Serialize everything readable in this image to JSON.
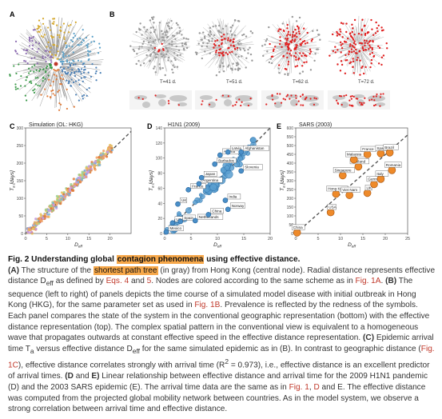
{
  "panel_labels": {
    "a": "A",
    "b": "B",
    "c": "C",
    "d": "D",
    "e": "E"
  },
  "panel_b": {
    "time_labels": [
      "T=41 d.",
      "T=51 d.",
      "T=62 d.",
      "T=72 d."
    ]
  },
  "panel_c": {
    "title": "Simulation (OL: HKG)",
    "ylabel": "T_a [days]",
    "xlabel": "D_eff"
  },
  "panel_d": {
    "title": "H1N1 (2009)",
    "ylabel": "T_a [days]",
    "xlabel": "D_eff",
    "countries": [
      "Afghanistan",
      "Latvia",
      "Algeria",
      "Barbados",
      "Slovenia",
      "Japan",
      "Argentina",
      "France",
      "India",
      "UK",
      "Norway",
      "China",
      "USA",
      "Spain",
      "Netherlands",
      "Mexico"
    ]
  },
  "panel_e": {
    "title": "SARS (2003)",
    "ylabel": "T_a [days]",
    "xlabel": "D_eff",
    "countries": [
      "France",
      "Spain",
      "Brazil",
      "Malaysia",
      "Romania",
      "Thailand",
      "Italy",
      "Singapore",
      "Germany",
      "Hong Kong",
      "Viet Nam",
      "UK",
      "USA",
      "China"
    ]
  },
  "chart_data": [
    {
      "type": "scatter",
      "title": "Simulation (OL: HKG)",
      "xlabel": "D_eff",
      "ylabel": "T_a [days]",
      "xlim": [
        0,
        25
      ],
      "ylim": [
        0,
        300
      ],
      "x_ticks": [
        0,
        5,
        10,
        15,
        20
      ],
      "y_ticks": [
        0,
        50,
        100,
        150,
        200,
        250,
        300
      ],
      "series": [
        {
          "x": [
            1,
            2,
            3,
            4,
            5,
            6,
            7,
            8,
            9,
            10,
            11,
            12,
            13,
            14,
            15,
            16,
            17,
            18,
            19,
            20
          ],
          "y": [
            10,
            22,
            34,
            46,
            58,
            70,
            82,
            95,
            107,
            119,
            131,
            144,
            156,
            168,
            180,
            192,
            205,
            217,
            229,
            241
          ]
        }
      ],
      "trend_line": [
        [
          0,
          0
        ],
        [
          25,
          290
        ]
      ]
    },
    {
      "type": "scatter",
      "title": "H1N1 (2009)",
      "xlabel": "D_eff",
      "ylabel": "T_a [days]",
      "xlim": [
        0,
        20
      ],
      "ylim": [
        0,
        140
      ],
      "x_ticks": [
        0,
        5,
        10,
        15,
        20
      ],
      "y_ticks": [
        0,
        20,
        40,
        60,
        80,
        100,
        120,
        140
      ],
      "points": [
        {
          "label": "Mexico",
          "x": 0.3,
          "y": 2
        },
        {
          "label": "USA",
          "x": 1.5,
          "y": 14
        },
        {
          "label": "Spain",
          "x": 3.0,
          "y": 16
        },
        {
          "label": "Netherlands",
          "x": 5.8,
          "y": 17
        },
        {
          "label": "UK",
          "x": 2.5,
          "y": 39
        },
        {
          "label": "China",
          "x": 8.3,
          "y": 25
        },
        {
          "label": "France",
          "x": 4.5,
          "y": 58
        },
        {
          "label": "Argentina",
          "x": 6.5,
          "y": 66
        },
        {
          "label": "Japan",
          "x": 7.0,
          "y": 74
        },
        {
          "label": "India",
          "x": 11.5,
          "y": 44
        },
        {
          "label": "Norway",
          "x": 12.0,
          "y": 32
        },
        {
          "label": "Barbados",
          "x": 9.5,
          "y": 92
        },
        {
          "label": "Algeria",
          "x": 10.5,
          "y": 104
        },
        {
          "label": "Slovenia",
          "x": 14.5,
          "y": 83
        },
        {
          "label": "Latvia",
          "x": 12.0,
          "y": 108
        },
        {
          "label": "Afghanistan",
          "x": 14.5,
          "y": 108
        }
      ],
      "trend_line": [
        [
          0,
          0
        ],
        [
          20,
          140
        ]
      ]
    },
    {
      "type": "scatter",
      "title": "SARS (2003)",
      "xlabel": "D_eff",
      "ylabel": "T_a [days]",
      "xlim": [
        0,
        25
      ],
      "ylim": [
        0,
        600
      ],
      "x_ticks": [
        0,
        5,
        10,
        15,
        20,
        25
      ],
      "y_ticks": [
        0,
        50,
        100,
        150,
        200,
        250,
        300,
        350,
        400,
        450,
        500,
        550,
        600
      ],
      "points": [
        {
          "label": "China",
          "x": 0.3,
          "y": 5
        },
        {
          "label": "USA",
          "x": 7.8,
          "y": 120
        },
        {
          "label": "Hong Kong",
          "x": 9.0,
          "y": 225
        },
        {
          "label": "Viet Nam",
          "x": 12.0,
          "y": 218
        },
        {
          "label": "UK",
          "x": 16.0,
          "y": 230
        },
        {
          "label": "Singapore",
          "x": 10.5,
          "y": 330
        },
        {
          "label": "Germany",
          "x": 17.5,
          "y": 280
        },
        {
          "label": "Italy",
          "x": 19.0,
          "y": 310
        },
        {
          "label": "Thailand",
          "x": 14.0,
          "y": 380
        },
        {
          "label": "Malaysia",
          "x": 13.0,
          "y": 420
        },
        {
          "label": "France",
          "x": 16.0,
          "y": 450
        },
        {
          "label": "Spain",
          "x": 19.0,
          "y": 455
        },
        {
          "label": "Brazil",
          "x": 21.0,
          "y": 460
        },
        {
          "label": "Romania",
          "x": 21.5,
          "y": 360
        }
      ],
      "trend_line": [
        [
          0,
          0
        ],
        [
          25,
          560
        ]
      ]
    }
  ],
  "caption": {
    "title_prefix": "Fig. 2 Understanding global ",
    "title_highlight": "contagion phenomena",
    "title_suffix": " using effective distance.",
    "a_label": "(A)",
    "a_before": " The structure of the ",
    "a_highlight": "shortest path tree",
    "a_after": " (in gray) from Hong Kong (central node). Radial distance represents effective distance D",
    "eff_sub": "eff",
    "a_as_defined": " as defined by ",
    "eq4": "Eqs. 4",
    "and": " and ",
    "eq5": "5",
    "a_colored": ". Nodes are colored according to the same scheme as in ",
    "fig1a": "Fig. 1A",
    "period": ".",
    "b_label": "(B)",
    "b_text_1": " The sequence (left to right) of panels depicts the time course of a simulated model disease with initial outbreak in Hong Kong (HKG), for the same parameter set as used in ",
    "fig1b": "Fig. 1B",
    "b_text_2": ". Prevalence is reflected by the redness of the symbols. Each panel compares the state of the system in the conventional geographic representation (bottom) with the effective distance representation (top). The complex spatial pattern in the conventional view is equivalent to a homogeneous wave that propagates outwards at constant effective speed in the effective distance representation.",
    "c_label": "(C)",
    "c_text_1": " Epidemic arrival time T",
    "c_sub_a": "a",
    "c_text_2": " versus effective distance D",
    "c_text_3": " for the same simulated epidemic as in (B). In contrast to geographic distance (",
    "fig1c": "Fig. 1C",
    "c_text_4": "), effective distance correlates strongly with arrival time (R",
    "c_sup_2": "2",
    "c_text_5": " = 0.973), i.e., effective distance is an excellent predictor of arrival times.",
    "de_label": "(D",
    "de_and": " and ",
    "de_e": "E)",
    "de_text_1": " Linear relationship between effective distance and arrival time for the 2009 H1N1 pandemic (D) and the 2003 SARS epidemic (E). The arrival time data are the same as in ",
    "fig1": "Fig. 1",
    "comma": ", ",
    "d_link": "D",
    "de_text_2": " and E. The effective distance was computed from the projected global mobility network between countries. As in the model system, we observe a strong correlation between arrival time and effective distance."
  }
}
